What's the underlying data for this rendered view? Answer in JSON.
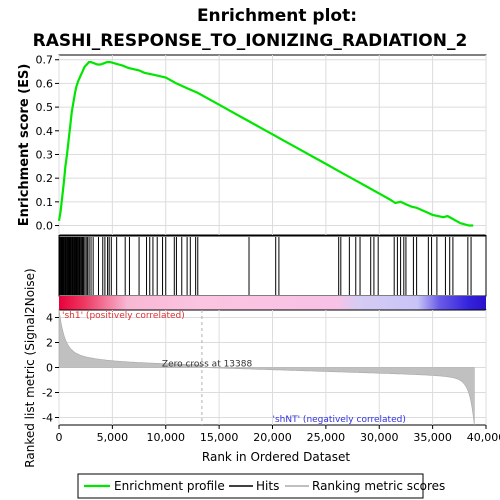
{
  "chart_data": {
    "type": "line",
    "title_line1": "Enrichment plot:",
    "title_line2": "RASHI_RESPONSE_TO_IONIZING_RADIATION_2",
    "top_ylabel": "Enrichment score (ES)",
    "bottom_ylabel": "Ranked list metric (Signal2Noise)",
    "xlabel": "Rank in Ordered Dataset",
    "xlim": [
      0,
      40000
    ],
    "x_ticks": [
      0,
      5000,
      10000,
      15000,
      20000,
      25000,
      30000,
      35000,
      40000
    ],
    "x_tick_labels": [
      "0",
      "5,000",
      "10,000",
      "15,000",
      "20,000",
      "25,000",
      "30,000",
      "35,000",
      "40,000"
    ],
    "es_ylim": [
      -0.04,
      0.72
    ],
    "es_ticks": [
      0.0,
      0.1,
      0.2,
      0.3,
      0.4,
      0.5,
      0.6,
      0.7
    ],
    "es_tick_labels": [
      "0.0",
      "0.1",
      "0.2",
      "0.3",
      "0.4",
      "0.5",
      "0.6",
      "0.7"
    ],
    "metric_ylim": [
      -4.6,
      4.6
    ],
    "metric_ticks": [
      4,
      2,
      0,
      -2,
      -4
    ],
    "metric_tick_labels": [
      "4",
      "2",
      "0",
      "-2",
      "-4"
    ],
    "enrichment_profile": {
      "x": [
        0,
        150,
        300,
        450,
        600,
        750,
        900,
        1050,
        1200,
        1350,
        1500,
        1650,
        1800,
        2000,
        2200,
        2400,
        2600,
        2800,
        3000,
        3300,
        3600,
        3900,
        4200,
        4500,
        4800,
        5200,
        5600,
        6000,
        6500,
        7000,
        7500,
        8000,
        8500,
        9000,
        9500,
        10000,
        11000,
        12000,
        13000,
        14000,
        15000,
        16000,
        17000,
        18000,
        19000,
        20000,
        21000,
        22000,
        23000,
        24000,
        25000,
        26000,
        27000,
        28000,
        29000,
        30000,
        31000,
        31500,
        32000,
        32500,
        33000,
        33500,
        34000,
        34500,
        35000,
        35500,
        36000,
        36400,
        36800,
        37200,
        37600,
        38000,
        38400,
        38800
      ],
      "y": [
        0.02,
        0.06,
        0.12,
        0.18,
        0.25,
        0.3,
        0.36,
        0.42,
        0.48,
        0.52,
        0.56,
        0.59,
        0.61,
        0.63,
        0.65,
        0.67,
        0.68,
        0.69,
        0.69,
        0.685,
        0.68,
        0.68,
        0.685,
        0.69,
        0.69,
        0.685,
        0.68,
        0.675,
        0.665,
        0.66,
        0.655,
        0.645,
        0.64,
        0.635,
        0.63,
        0.625,
        0.6,
        0.58,
        0.56,
        0.535,
        0.51,
        0.485,
        0.46,
        0.435,
        0.41,
        0.385,
        0.36,
        0.335,
        0.31,
        0.285,
        0.26,
        0.235,
        0.21,
        0.185,
        0.16,
        0.135,
        0.11,
        0.095,
        0.1,
        0.09,
        0.08,
        0.075,
        0.065,
        0.055,
        0.045,
        0.04,
        0.035,
        0.04,
        0.03,
        0.02,
        0.01,
        0.005,
        0.0,
        0.0
      ]
    },
    "hits": [
      60,
      130,
      200,
      280,
      350,
      420,
      500,
      580,
      640,
      720,
      800,
      870,
      940,
      1010,
      1080,
      1150,
      1230,
      1300,
      1380,
      1450,
      1530,
      1600,
      1680,
      1760,
      1840,
      1920,
      2000,
      2100,
      2200,
      2300,
      2420,
      2550,
      2680,
      2820,
      3000,
      3200,
      3700,
      4100,
      4300,
      4550,
      4700,
      4900,
      5400,
      6200,
      6600,
      7500,
      8200,
      8500,
      8800,
      9200,
      9700,
      10000,
      10800,
      11000,
      11500,
      12000,
      12300,
      12800,
      13000,
      17800,
      20300,
      20600,
      26200,
      26400,
      27200,
      27800,
      28200,
      29200,
      29500,
      29900,
      31400,
      31700,
      32000,
      32300,
      32500,
      33200,
      33500,
      34600,
      34900,
      35400,
      36200,
      36600,
      36900,
      38300,
      38600
    ],
    "zero_cross_label": "Zero cross at 13388",
    "zero_cross": 13388,
    "pos_label": "'sh1' (positively correlated)",
    "neg_label": "'shNT' (negatively correlated)",
    "legend": [
      "Enrichment profile",
      "Hits",
      "Ranking metric scores"
    ],
    "colors": {
      "profile": "#00e600",
      "hits": "#000000",
      "metric_fill": "#c0c0c0",
      "pos_text": "#e03030",
      "neg_text": "#3030e0",
      "grid": "#dcdcdc"
    }
  }
}
